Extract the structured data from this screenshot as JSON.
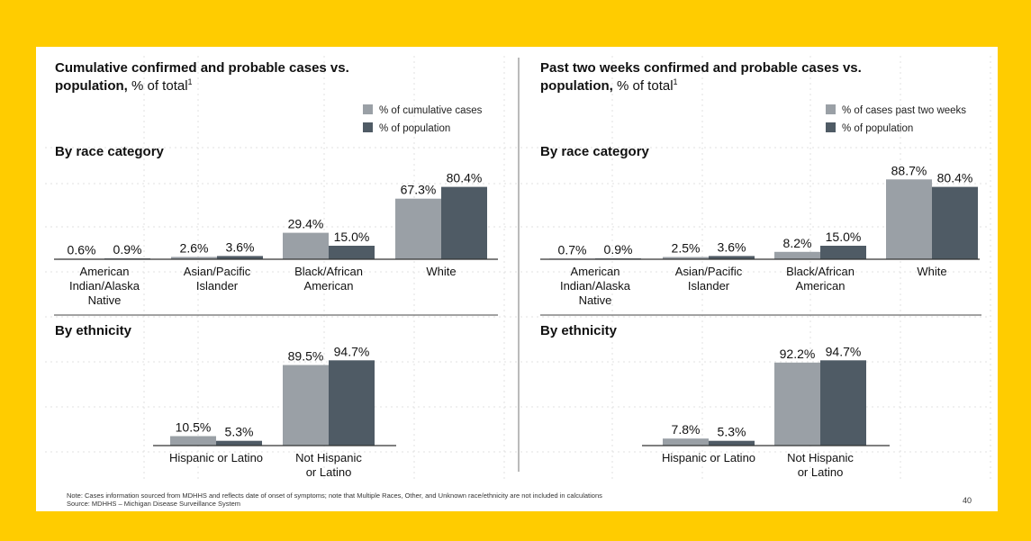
{
  "colors": {
    "frame": "#ffcc00",
    "bar_light": "#9aa0a6",
    "bar_dark": "#4f5b65",
    "axis": "#333333",
    "grid": "#d9d9d9"
  },
  "left_panel": {
    "title_bold_1": "Cumulative confirmed and probable cases vs.",
    "title_bold_2": "population,",
    "title_rest": " % of total",
    "title_sup": "1",
    "legend": [
      "% of cumulative cases",
      "% of population"
    ],
    "race_heading": "By race category",
    "ethnicity_heading": "By ethnicity"
  },
  "right_panel": {
    "title_bold_1": "Past two weeks confirmed and probable cases vs.",
    "title_bold_2": "population,",
    "title_rest": " % of total",
    "title_sup": "1",
    "legend": [
      "% of cases past two weeks",
      "% of population"
    ],
    "race_heading": "By race category",
    "ethnicity_heading": "By ethnicity"
  },
  "footnote": {
    "note": "Note: Cases information sourced from MDHHS and reflects date of onset of symptoms; note that Multiple Races, Other, and Unknown race/ethnicity are not included in calculations",
    "source": "Source: MDHHS – Michigan Disease Surveillance System"
  },
  "page_number": "40",
  "chart_data": [
    {
      "type": "bar",
      "id": "left-race",
      "categories": [
        [
          "American",
          "Indian/Alaska",
          "Native"
        ],
        [
          "Asian/Pacific",
          "Islander"
        ],
        [
          "Black/African",
          "American"
        ],
        [
          "White"
        ]
      ],
      "series": [
        {
          "name": "% of cumulative cases",
          "values": [
            0.6,
            2.6,
            29.4,
            67.3
          ],
          "labels": [
            "0.6%",
            "2.6%",
            "29.4%",
            "67.3%"
          ]
        },
        {
          "name": "% of population",
          "values": [
            0.9,
            3.6,
            15.0,
            80.4
          ],
          "labels": [
            "0.9%",
            "3.6%",
            "15.0%",
            "80.4%"
          ]
        }
      ],
      "ylim": [
        0,
        100
      ]
    },
    {
      "type": "bar",
      "id": "left-ethnicity",
      "categories": [
        [
          "Hispanic or Latino"
        ],
        [
          "Not Hispanic",
          "or Latino"
        ]
      ],
      "series": [
        {
          "name": "% of cumulative cases",
          "values": [
            10.5,
            89.5
          ],
          "labels": [
            "10.5%",
            "89.5%"
          ]
        },
        {
          "name": "% of population",
          "values": [
            5.3,
            94.7
          ],
          "labels": [
            "5.3%",
            "94.7%"
          ]
        }
      ],
      "ylim": [
        0,
        100
      ]
    },
    {
      "type": "bar",
      "id": "right-race",
      "categories": [
        [
          "American",
          "Indian/Alaska",
          "Native"
        ],
        [
          "Asian/Pacific",
          "Islander"
        ],
        [
          "Black/African",
          "American"
        ],
        [
          "White"
        ]
      ],
      "series": [
        {
          "name": "% of cases past two weeks",
          "values": [
            0.7,
            2.5,
            8.2,
            88.7
          ],
          "labels": [
            "0.7%",
            "2.5%",
            "8.2%",
            "88.7%"
          ]
        },
        {
          "name": "% of population",
          "values": [
            0.9,
            3.6,
            15.0,
            80.4
          ],
          "labels": [
            "0.9%",
            "3.6%",
            "15.0%",
            "80.4%"
          ]
        }
      ],
      "ylim": [
        0,
        100
      ]
    },
    {
      "type": "bar",
      "id": "right-ethnicity",
      "categories": [
        [
          "Hispanic or Latino"
        ],
        [
          "Not Hispanic",
          "or Latino"
        ]
      ],
      "series": [
        {
          "name": "% of cases past two weeks",
          "values": [
            7.8,
            92.2
          ],
          "labels": [
            "7.8%",
            "92.2%"
          ]
        },
        {
          "name": "% of population",
          "values": [
            5.3,
            94.7
          ],
          "labels": [
            "5.3%",
            "94.7%"
          ]
        }
      ],
      "ylim": [
        0,
        100
      ]
    }
  ]
}
